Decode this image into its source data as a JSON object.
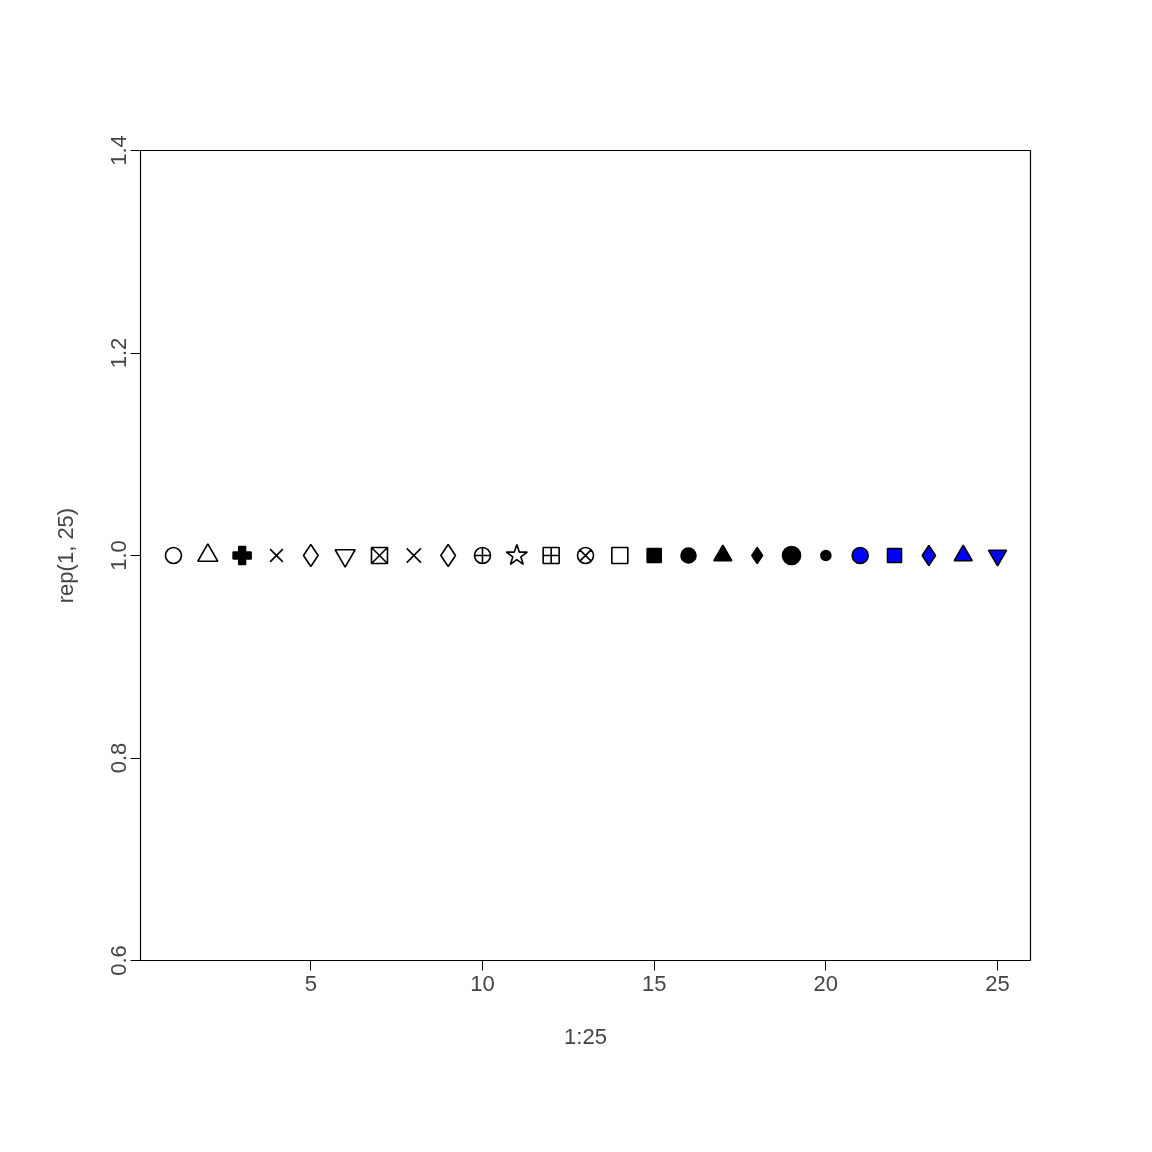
{
  "chart_data": {
    "type": "scatter",
    "xlabel": "1:25",
    "ylabel": "rep(1, 25)",
    "xlim": [
      0.04,
      25.96
    ],
    "xticks": [
      5,
      10,
      15,
      20,
      25
    ],
    "ylim": [
      0.6,
      1.4
    ],
    "yticks": [
      0.6,
      0.8,
      {
        "value": 1.0,
        "label": "1.0"
      },
      1.2,
      1.4
    ],
    "grid": false,
    "series": [
      {
        "x": [
          1
        ],
        "values": [
          1
        ],
        "color": "#000000",
        "marker": "circle"
      },
      {
        "x": [
          2
        ],
        "values": [
          1
        ],
        "color": "#000000",
        "marker": "triangle"
      },
      {
        "x": [
          3
        ],
        "values": [
          1
        ],
        "color": "#000000",
        "marker": "cross"
      },
      {
        "x": [
          4
        ],
        "values": [
          1
        ],
        "color": "#000000",
        "marker": "cross"
      },
      {
        "x": [
          5
        ],
        "values": [
          1
        ],
        "color": "#000000",
        "marker": "diamond"
      },
      {
        "x": [
          6
        ],
        "values": [
          1
        ],
        "color": "#000000",
        "marker": "triangle"
      },
      {
        "x": [
          7
        ],
        "values": [
          1
        ],
        "color": "#000000",
        "marker": "cross"
      },
      {
        "x": [
          8
        ],
        "values": [
          1
        ],
        "color": "#000000",
        "marker": "cross"
      },
      {
        "x": [
          9
        ],
        "values": [
          1
        ],
        "color": "#000000",
        "marker": "diamond"
      },
      {
        "x": [
          10
        ],
        "values": [
          1
        ],
        "color": "#000000",
        "marker": "circle"
      },
      {
        "x": [
          11
        ],
        "values": [
          1
        ],
        "color": "#000000",
        "marker": "star"
      },
      {
        "x": [
          12
        ],
        "values": [
          1
        ],
        "color": "#000000",
        "marker": "cross"
      },
      {
        "x": [
          13
        ],
        "values": [
          1
        ],
        "color": "#000000",
        "marker": "cross"
      },
      {
        "x": [
          14
        ],
        "values": [
          1
        ],
        "color": "#000000",
        "marker": "square"
      },
      {
        "x": [
          15
        ],
        "values": [
          1
        ],
        "color": "#000000",
        "marker": "square"
      },
      {
        "x": [
          16
        ],
        "values": [
          1
        ],
        "color": "#000000",
        "marker": "circle"
      },
      {
        "x": [
          17
        ],
        "values": [
          1
        ],
        "color": "#000000",
        "marker": "triangle"
      },
      {
        "x": [
          18
        ],
        "values": [
          1
        ],
        "color": "#000000",
        "marker": "diamond"
      },
      {
        "x": [
          19
        ],
        "values": [
          1
        ],
        "color": "#000000",
        "marker": "circle"
      },
      {
        "x": [
          20
        ],
        "values": [
          1
        ],
        "color": "#000000",
        "marker": "circle"
      },
      {
        "x": [
          21
        ],
        "values": [
          1
        ],
        "color": "#0000ff",
        "marker": "circle"
      },
      {
        "x": [
          22
        ],
        "values": [
          1
        ],
        "color": "#0000ff",
        "marker": "square"
      },
      {
        "x": [
          23
        ],
        "values": [
          1
        ],
        "color": "#0000ff",
        "marker": "diamond"
      },
      {
        "x": [
          24
        ],
        "values": [
          1
        ],
        "color": "#0000ff",
        "marker": "triangle"
      },
      {
        "x": [
          25
        ],
        "values": [
          1
        ],
        "color": "#0000ff",
        "marker": "triangle"
      }
    ]
  }
}
